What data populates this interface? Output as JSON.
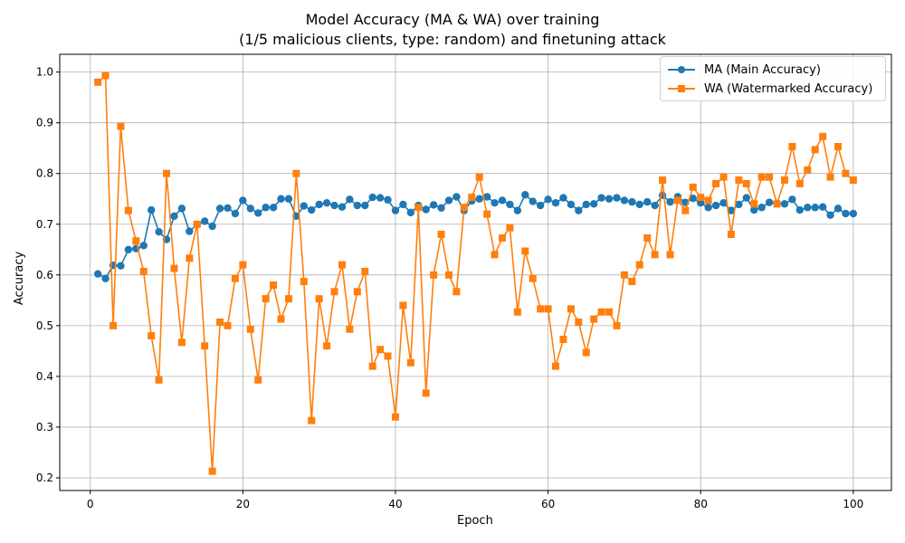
{
  "chart_data": {
    "type": "line",
    "title": "Model Accuracy (MA & WA) over training",
    "subtitle": "(1/5 malicious clients, type: random) and finetuning attack",
    "xlabel": "Epoch",
    "ylabel": "Accuracy",
    "xlim": [
      -4,
      105
    ],
    "ylim": [
      0.175,
      1.035
    ],
    "xticks": [
      0,
      20,
      40,
      60,
      80,
      100
    ],
    "yticks": [
      0.2,
      0.3,
      0.4,
      0.5,
      0.6,
      0.7,
      0.8,
      0.9,
      1.0
    ],
    "xtick_labels": [
      "0",
      "20",
      "40",
      "60",
      "80",
      "100"
    ],
    "ytick_labels": [
      "0.2",
      "0.3",
      "0.4",
      "0.5",
      "0.6",
      "0.7",
      "0.8",
      "0.9",
      "1.0"
    ],
    "grid": true,
    "legend_position": "top-right",
    "x": [
      1,
      2,
      3,
      4,
      5,
      6,
      7,
      8,
      9,
      10,
      11,
      12,
      13,
      14,
      15,
      16,
      17,
      18,
      19,
      20,
      21,
      22,
      23,
      24,
      25,
      26,
      27,
      28,
      29,
      30,
      31,
      32,
      33,
      34,
      35,
      36,
      37,
      38,
      39,
      40,
      41,
      42,
      43,
      44,
      45,
      46,
      47,
      48,
      49,
      50,
      51,
      52,
      53,
      54,
      55,
      56,
      57,
      58,
      59,
      60,
      61,
      62,
      63,
      64,
      65,
      66,
      67,
      68,
      69,
      70,
      71,
      72,
      73,
      74,
      75,
      76,
      77,
      78,
      79,
      80,
      81,
      82,
      83,
      84,
      85,
      86,
      87,
      88,
      89,
      90,
      91,
      92,
      93,
      94,
      95,
      96,
      97,
      98,
      99,
      100
    ],
    "series": [
      {
        "name": "MA (Main Accuracy)",
        "color": "#1f77b4",
        "marker": "circle",
        "values": [
          0.602,
          0.593,
          0.619,
          0.618,
          0.65,
          0.652,
          0.658,
          0.728,
          0.685,
          0.67,
          0.716,
          0.731,
          0.686,
          0.699,
          0.706,
          0.696,
          0.731,
          0.732,
          0.721,
          0.747,
          0.731,
          0.722,
          0.733,
          0.733,
          0.75,
          0.75,
          0.716,
          0.736,
          0.728,
          0.739,
          0.742,
          0.737,
          0.734,
          0.749,
          0.737,
          0.737,
          0.753,
          0.752,
          0.748,
          0.727,
          0.739,
          0.723,
          0.737,
          0.729,
          0.738,
          0.732,
          0.747,
          0.754,
          0.727,
          0.746,
          0.75,
          0.754,
          0.742,
          0.747,
          0.739,
          0.727,
          0.758,
          0.745,
          0.737,
          0.749,
          0.742,
          0.752,
          0.739,
          0.727,
          0.739,
          0.74,
          0.752,
          0.75,
          0.752,
          0.747,
          0.744,
          0.739,
          0.744,
          0.737,
          0.757,
          0.744,
          0.754,
          0.743,
          0.751,
          0.742,
          0.733,
          0.737,
          0.742,
          0.727,
          0.739,
          0.752,
          0.728,
          0.733,
          0.743,
          0.741,
          0.74,
          0.749,
          0.728,
          0.733,
          0.733,
          0.734,
          0.718,
          0.731,
          0.721,
          0.721
        ]
      },
      {
        "name": "WA (Watermarked Accuracy)",
        "color": "#ff7f0e",
        "marker": "square",
        "values": [
          0.98,
          0.993,
          0.5,
          0.893,
          0.727,
          0.667,
          0.607,
          0.48,
          0.393,
          0.8,
          0.613,
          0.467,
          0.633,
          0.7,
          0.46,
          0.213,
          0.507,
          0.5,
          0.593,
          0.62,
          0.493,
          0.393,
          0.553,
          0.58,
          0.513,
          0.553,
          0.8,
          0.587,
          0.313,
          0.553,
          0.46,
          0.567,
          0.62,
          0.493,
          0.567,
          0.607,
          0.42,
          0.453,
          0.44,
          0.32,
          0.54,
          0.427,
          0.733,
          0.367,
          0.6,
          0.68,
          0.6,
          0.567,
          0.733,
          0.753,
          0.793,
          0.72,
          0.64,
          0.673,
          0.693,
          0.527,
          0.647,
          0.593,
          0.533,
          0.533,
          0.42,
          0.473,
          0.533,
          0.507,
          0.447,
          0.513,
          0.527,
          0.527,
          0.5,
          0.6,
          0.587,
          0.62,
          0.673,
          0.64,
          0.787,
          0.64,
          0.747,
          0.727,
          0.773,
          0.753,
          0.747,
          0.78,
          0.793,
          0.68,
          0.787,
          0.78,
          0.74,
          0.793,
          0.793,
          0.74,
          0.787,
          0.853,
          0.78,
          0.807,
          0.847,
          0.873,
          0.793,
          0.853,
          0.8,
          0.787
        ]
      }
    ]
  }
}
